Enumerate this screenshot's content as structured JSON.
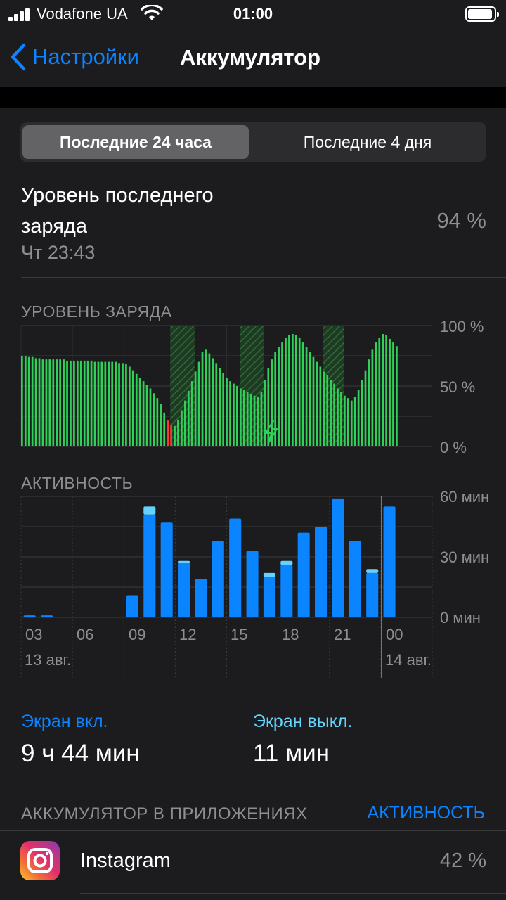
{
  "status_bar": {
    "carrier": "Vodafone UA",
    "time": "01:00"
  },
  "nav": {
    "back_label": "Настройки",
    "title": "Аккумулятор"
  },
  "segments": {
    "active": "Последние 24 часа",
    "inactive": "Последние 4 дня"
  },
  "last_charge": {
    "title": "Уровень последнего заряда",
    "time": "Чт 23:43",
    "value": "94 %"
  },
  "battery_chart_section": {
    "title": "УРОВЕНЬ ЗАРЯДА",
    "y_labels": [
      "100 %",
      "50 %",
      "0 %"
    ]
  },
  "activity_chart_section": {
    "title": "АКТИВНОСТЬ",
    "y_labels": [
      "60 мин",
      "30 мин",
      "0 мин"
    ],
    "x_labels": [
      "03",
      "06",
      "09",
      "12",
      "15",
      "18",
      "21",
      "00"
    ],
    "date_labels": [
      "13 авг.",
      "14 авг."
    ]
  },
  "chart_data": [
    {
      "type": "bar",
      "title": "УРОВЕНЬ ЗАРЯДА",
      "y_unit": "%",
      "ylim": [
        0,
        100
      ],
      "values": [
        75,
        75,
        74,
        74,
        73,
        73,
        72,
        72,
        72,
        72,
        72,
        72,
        72,
        71,
        71,
        71,
        71,
        71,
        71,
        71,
        71,
        70,
        70,
        70,
        70,
        70,
        70,
        70,
        69,
        69,
        68,
        66,
        63,
        60,
        57,
        54,
        51,
        48,
        44,
        40,
        35,
        28,
        22,
        18,
        17,
        22,
        30,
        38,
        46,
        54,
        62,
        70,
        78,
        80,
        77,
        73,
        69,
        65,
        61,
        57,
        54,
        52,
        50,
        48,
        47,
        45,
        43,
        42,
        41,
        45,
        55,
        65,
        72,
        78,
        82,
        86,
        90,
        92,
        93,
        92,
        90,
        86,
        82,
        78,
        74,
        70,
        66,
        62,
        59,
        55,
        52,
        48,
        45,
        42,
        40,
        38,
        41,
        47,
        55,
        63,
        72,
        80,
        86,
        90,
        93,
        92,
        89,
        86,
        83
      ],
      "low_battery_bars": [
        42,
        43
      ],
      "charging_periods": [
        [
          43,
          50
        ],
        [
          63,
          70
        ],
        [
          87,
          93
        ]
      ],
      "grid": true
    },
    {
      "type": "bar",
      "title": "АКТИВНОСТЬ",
      "y_unit": "мин",
      "ylim": [
        0,
        60
      ],
      "categories": [
        "03",
        "04",
        "05",
        "06",
        "07",
        "08",
        "09",
        "10",
        "11",
        "12",
        "13",
        "14",
        "15",
        "16",
        "17",
        "18",
        "19",
        "20",
        "21",
        "22",
        "23",
        "00"
      ],
      "series": [
        {
          "name": "Экран вкл.",
          "values": [
            1,
            1,
            0,
            0,
            0,
            0,
            11,
            51,
            47,
            27,
            19,
            38,
            49,
            33,
            20,
            26,
            42,
            45,
            59,
            38,
            22,
            55
          ]
        },
        {
          "name": "Экран выкл.",
          "values": [
            0,
            0,
            0,
            0,
            0,
            0,
            0,
            4,
            0,
            1,
            0,
            0,
            0,
            0,
            2,
            2,
            0,
            0,
            0,
            0,
            2,
            0
          ]
        }
      ],
      "grid": true
    }
  ],
  "usage": {
    "screen_on_label": "Экран вкл.",
    "screen_on_value": "9 ч 44 мин",
    "screen_off_label": "Экран выкл.",
    "screen_off_value": "11 мин"
  },
  "apps_section": {
    "title": "АККУМУЛЯТОР В ПРИЛОЖЕНИЯХ",
    "toggle": "АКТИВНОСТЬ"
  },
  "apps": [
    {
      "name": "Instagram",
      "percent": "42 %"
    }
  ],
  "colors": {
    "accent": "#0a84ff",
    "battery_bar": "#30d158",
    "battery_low": "#ff3b30",
    "activity_on": "#0a84ff",
    "activity_off": "#64d2ff"
  }
}
